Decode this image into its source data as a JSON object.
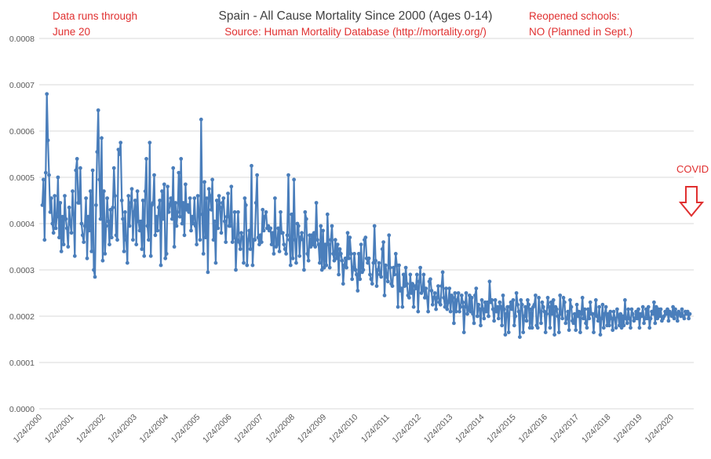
{
  "chart_data": {
    "type": "line",
    "title": "Spain - All Cause Mortality Since 2000 (Ages 0-14)",
    "subtitle": "Source: Human Mortality Database (http://mortality.org/)",
    "xlabel": "",
    "ylabel": "",
    "ylim": [
      0,
      0.0008
    ],
    "yticks": [
      "0.0000",
      "0.0001",
      "0.0002",
      "0.0003",
      "0.0004",
      "0.0005",
      "0.0006",
      "0.0007",
      "0.0008"
    ],
    "ytick_values": [
      0,
      0.0001,
      0.0002,
      0.0003,
      0.0004,
      0.0005,
      0.0006,
      0.0007,
      0.0008
    ],
    "xticks": [
      "1/24/2000",
      "1/24/2001",
      "1/24/2002",
      "1/24/2003",
      "1/24/2004",
      "1/24/2005",
      "1/24/2006",
      "1/24/2007",
      "1/24/2008",
      "1/24/2009",
      "1/24/2010",
      "1/24/2011",
      "1/24/2012",
      "1/24/2013",
      "1/24/2014",
      "1/24/2015",
      "1/24/2016",
      "1/24/2017",
      "1/24/2018",
      "1/24/2019",
      "1/24/2020"
    ],
    "grid": true,
    "line_color": "#4a7ebb",
    "series": [
      {
        "frequency": "weekly",
        "start": "1/24/2000",
        "values": [
          0.00044,
          0.000495,
          0.000365,
          0.00051,
          0.00068,
          0.00058,
          0.000505,
          0.000425,
          0.000455,
          0.0004,
          0.00038,
          0.00046,
          0.00039,
          0.000415,
          0.0005,
          0.00037,
          0.000445,
          0.00034,
          0.000415,
          0.000355,
          0.00046,
          0.00041,
          0.00039,
          0.00035,
          0.000435,
          0.0004,
          0.00038,
          0.00047,
          0.00042,
          0.00033,
          0.000515,
          0.00054,
          0.000445,
          0.000445,
          0.00052,
          0.0004,
          0.000375,
          0.00036,
          0.000395,
          0.000455,
          0.000325,
          0.000415,
          0.000385,
          0.00047,
          0.00034,
          0.000515,
          0.0003,
          0.000285,
          0.00044,
          0.000555,
          0.000645,
          0.000495,
          0.00041,
          0.000585,
          0.00032,
          0.00047,
          0.000335,
          0.000395,
          0.000455,
          0.000405,
          0.000355,
          0.00043,
          0.00037,
          0.000435,
          0.00052,
          0.00046,
          0.000375,
          0.000365,
          0.00056,
          0.00055,
          0.000575,
          0.00045,
          0.00041,
          0.00034,
          0.000425,
          0.000365,
          0.000315,
          0.00046,
          0.000395,
          0.000445,
          0.000475,
          0.000365,
          0.000425,
          0.00045,
          0.000355,
          0.00047,
          0.000405,
          0.000385,
          0.000405,
          0.000345,
          0.00045,
          0.00033,
          0.00047,
          0.00054,
          0.000395,
          0.000365,
          0.000575,
          0.00033,
          0.00044,
          0.000445,
          0.000505,
          0.000375,
          0.000415,
          0.000385,
          0.000435,
          0.00045,
          0.00031,
          0.00047,
          0.00041,
          0.000485,
          0.000325,
          0.000335,
          0.00048,
          0.000425,
          0.00044,
          0.000455,
          0.00041,
          0.00052,
          0.00035,
          0.000445,
          0.000395,
          0.000425,
          0.00051,
          0.000415,
          0.00054,
          0.0004,
          0.000445,
          0.000375,
          0.000485,
          0.00043,
          0.00044,
          0.000425,
          0.000455,
          0.000385,
          0.000415,
          0.0004,
          0.000455,
          0.000395,
          0.000355,
          0.00046,
          0.00042,
          0.000365,
          0.000625,
          0.00042,
          0.000335,
          0.00049,
          0.00037,
          0.000455,
          0.000295,
          0.000475,
          0.00046,
          0.00043,
          0.000495,
          0.000365,
          0.000405,
          0.000315,
          0.00045,
          0.00039,
          0.00046,
          0.000435,
          0.00038,
          0.000445,
          0.000455,
          0.000405,
          0.00036,
          0.000415,
          0.000465,
          0.000395,
          0.000395,
          0.00048,
          0.00036,
          0.00037,
          0.000425,
          0.0003,
          0.000365,
          0.000425,
          0.00036,
          0.000345,
          0.00038,
          0.00037,
          0.000315,
          0.000455,
          0.00044,
          0.00031,
          0.000365,
          0.000385,
          0.000345,
          0.000525,
          0.00031,
          0.000365,
          0.000365,
          0.000445,
          0.000505,
          0.00037,
          0.000355,
          0.000375,
          0.00036,
          0.00043,
          0.000385,
          0.000415,
          0.000425,
          0.00039,
          0.000395,
          0.000385,
          0.00039,
          0.000355,
          0.00038,
          0.000335,
          0.000455,
          0.00035,
          0.000355,
          0.00039,
          0.00034,
          0.000425,
          0.00038,
          0.00038,
          0.000355,
          0.000345,
          0.000335,
          0.000375,
          0.000505,
          0.000365,
          0.00031,
          0.00042,
          0.000325,
          0.000495,
          0.000365,
          0.000315,
          0.0004,
          0.000395,
          0.00033,
          0.00037,
          0.00038,
          0.000365,
          0.0003,
          0.000425,
          0.00041,
          0.000335,
          0.00032,
          0.000375,
          0.00035,
          0.000375,
          0.000355,
          0.00038,
          0.00035,
          0.000445,
          0.000365,
          0.000355,
          0.000315,
          0.000395,
          0.0003,
          0.000385,
          0.000305,
          0.000355,
          0.00031,
          0.00042,
          0.000355,
          0.000305,
          0.000365,
          0.000395,
          0.000335,
          0.00032,
          0.000365,
          0.000325,
          0.000355,
          0.00029,
          0.000345,
          0.000335,
          0.00032,
          0.00027,
          0.00031,
          0.000325,
          0.000305,
          0.00038,
          0.000325,
          0.00037,
          0.000335,
          0.00028,
          0.000305,
          0.000335,
          0.0003,
          0.00029,
          0.000255,
          0.000335,
          0.00028,
          0.000355,
          0.000295,
          0.0003,
          0.000365,
          0.00037,
          0.000325,
          0.000315,
          0.000325,
          0.00029,
          0.00028,
          0.00027,
          0.000315,
          0.000395,
          0.00032,
          0.000265,
          0.0003,
          0.000315,
          0.00029,
          0.000285,
          0.000345,
          0.00036,
          0.000245,
          0.00031,
          0.000285,
          0.000275,
          0.000375,
          0.000305,
          0.00027,
          0.000265,
          0.000305,
          0.00029,
          0.000335,
          0.00031,
          0.00022,
          0.00031,
          0.000255,
          0.00026,
          0.00022,
          0.00029,
          0.000265,
          0.000305,
          0.00027,
          0.000245,
          0.00024,
          0.00029,
          0.00025,
          0.00027,
          0.00022,
          0.000265,
          0.00026,
          0.00029,
          0.00021,
          0.000275,
          0.000305,
          0.00025,
          0.000255,
          0.00029,
          0.00024,
          0.00026,
          0.00024,
          0.00021,
          0.000275,
          0.00028,
          0.000255,
          0.000225,
          0.00024,
          0.00025,
          0.000215,
          0.00024,
          0.000265,
          0.00023,
          0.000225,
          0.000265,
          0.000295,
          0.00024,
          0.00022,
          0.00026,
          0.000215,
          0.00023,
          0.00026,
          0.00021,
          0.000245,
          0.00024,
          0.000185,
          0.00025,
          0.00021,
          0.000235,
          0.00025,
          0.00021,
          0.00022,
          0.000245,
          0.00023,
          0.000165,
          0.00022,
          0.00025,
          0.000205,
          0.000215,
          0.000245,
          0.00021,
          0.00024,
          0.000205,
          0.000185,
          0.000245,
          0.00026,
          0.0002,
          0.000225,
          0.000215,
          0.00018,
          0.000235,
          0.000215,
          0.000195,
          0.00023,
          0.00021,
          0.00023,
          0.0002,
          0.000275,
          0.00023,
          0.000235,
          0.000215,
          0.00019,
          0.000235,
          0.00021,
          0.00022,
          0.000195,
          0.00023,
          0.00022,
          0.00018,
          0.000245,
          0.000215,
          0.00016,
          0.000205,
          0.00022,
          0.000165,
          0.00022,
          0.00023,
          0.000215,
          0.000235,
          0.00018,
          0.0002,
          0.00025,
          0.000225,
          0.00021,
          0.000155,
          0.000235,
          0.000225,
          0.000165,
          0.0002,
          0.00022,
          0.00019,
          0.000235,
          0.000225,
          0.000175,
          0.000215,
          0.000175,
          0.00022,
          0.000225,
          0.000245,
          0.00018,
          0.000175,
          0.00024,
          0.00021,
          0.000185,
          0.00023,
          0.00022,
          0.00021,
          0.000165,
          0.000205,
          0.00024,
          0.00022,
          0.000175,
          0.00023,
          0.000205,
          0.000235,
          0.00016,
          0.00022,
          0.000215,
          0.0002,
          0.000165,
          0.000245,
          0.000205,
          0.000195,
          0.00024,
          0.00023,
          0.000185,
          0.000195,
          0.00021,
          0.00017,
          0.000235,
          0.00022,
          0.00019,
          0.000185,
          0.000205,
          0.00017,
          0.000225,
          0.0002,
          0.00021,
          0.000165,
          0.000205,
          0.00024,
          0.000195,
          0.000215,
          0.000185,
          0.000175,
          0.000215,
          0.000195,
          0.00023,
          0.000205,
          0.000205,
          0.000165,
          0.000205,
          0.000235,
          0.0002,
          0.00019,
          0.00022,
          0.00016,
          0.000195,
          0.000225,
          0.000175,
          0.000205,
          0.00022,
          0.00018,
          0.000205,
          0.00018,
          0.00021,
          0.000195,
          0.00017,
          0.00021,
          0.000195,
          0.000175,
          0.000215,
          0.0002,
          0.00018,
          0.000205,
          0.000175,
          0.0002,
          0.00018,
          0.000235,
          0.000195,
          0.000185,
          0.000215,
          0.000195,
          0.000175,
          0.000215,
          0.000205,
          0.00019,
          0.000195,
          0.00021,
          0.000195,
          0.000215,
          0.000175,
          0.000205,
          0.0002,
          0.00022,
          0.000185,
          0.000195,
          0.000215,
          0.000195,
          0.00022,
          0.000175,
          0.000195,
          0.00021,
          0.000205,
          0.00023,
          0.000185,
          0.00022,
          0.000195,
          0.000215,
          0.0002,
          0.000215,
          0.00019,
          0.000195,
          0.0002,
          0.00021,
          0.000205,
          0.000215,
          0.00019,
          0.00021,
          0.000205,
          0.0002,
          0.00022,
          0.000195,
          0.000215,
          0.000205,
          0.00019,
          0.00021,
          0.000205,
          0.0002,
          0.000215,
          0.0002,
          0.000195,
          0.00021,
          0.000205,
          0.00021,
          0.000195,
          0.000205
        ]
      }
    ]
  },
  "annotations": {
    "left_note_line1": "Data runs through",
    "left_note_line2": "June 20",
    "right_note_line1": "Reopened schools:",
    "right_note_line2": "NO (Planned in Sept.)",
    "covid": "COVID"
  },
  "colors": {
    "annotation": "#e03030",
    "arrow": "#e03030",
    "gridline": "#d9d9d9",
    "title": "#404040"
  }
}
